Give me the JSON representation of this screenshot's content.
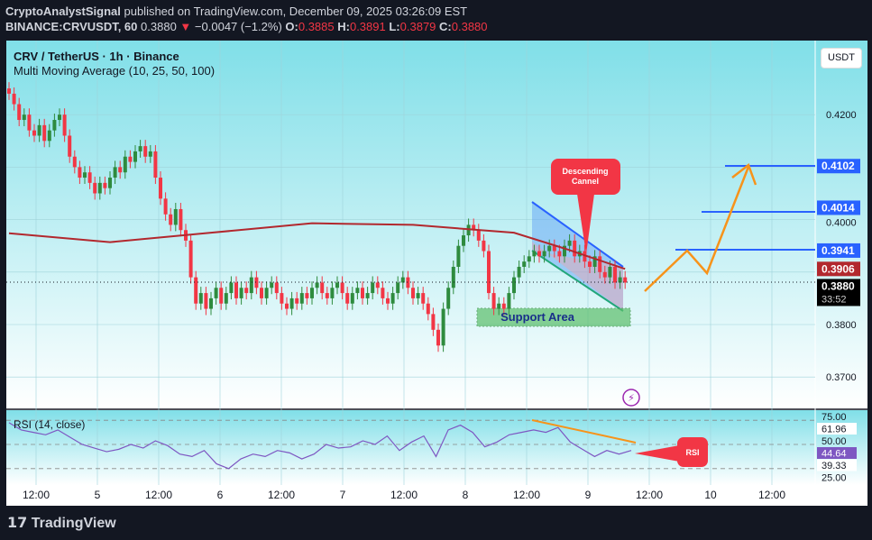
{
  "header": {
    "author": "CryptoAnalystSignal",
    "published": "published on TradingView.com, December 09, 2025 03:26:09 EST",
    "symbol": "BINANCE:CRVUSDT, 60",
    "last": "0.3880",
    "change": "−0.0047 (−1.2%)",
    "o_label": "O:",
    "o": "0.3885",
    "h_label": "H:",
    "h": "0.3891",
    "l_label": "L:",
    "l": "0.3879",
    "c_label": "C:",
    "c": "0.3880"
  },
  "legend": {
    "title": "CRV / TetherUS · 1h · Binance",
    "indicator": "Multi Moving Average (10, 25, 50, 100)",
    "rsi": "RSI (14, close)"
  },
  "currency": "USDT",
  "footer": {
    "brand": "TradingView"
  },
  "annotations": {
    "channel_label": "Descending Cannel",
    "support": "Support Area",
    "rsi_label": "RSI"
  },
  "price_tags": {
    "t1": "0.4102",
    "t2": "0.4014",
    "t3": "0.3941",
    "ma": "0.3906",
    "last": "0.3880",
    "countdown": "33:52"
  },
  "colors": {
    "up": "#2e8b3e",
    "down": "#f23645",
    "ma": "#b2282e",
    "level": "#2962ff",
    "orange": "#f7931a",
    "rsi": "#7e57c2",
    "callout": "#f23645"
  },
  "chart_data": {
    "type": "candlestick",
    "interval": "1h",
    "ylim": [
      0.365,
      0.4325
    ],
    "y_ticks": [
      "0.4200",
      "0.4000",
      "0.3800",
      "0.3700"
    ],
    "x_ticks": [
      "12:00",
      "5",
      "12:00",
      "6",
      "12:00",
      "7",
      "12:00",
      "8",
      "12:00",
      "9",
      "12:00",
      "10",
      "12:00"
    ],
    "closes": [
      0.424,
      0.422,
      0.419,
      0.42,
      0.417,
      0.416,
      0.418,
      0.415,
      0.417,
      0.419,
      0.42,
      0.416,
      0.412,
      0.41,
      0.408,
      0.409,
      0.407,
      0.405,
      0.407,
      0.406,
      0.408,
      0.41,
      0.409,
      0.412,
      0.411,
      0.413,
      0.414,
      0.412,
      0.413,
      0.408,
      0.404,
      0.401,
      0.399,
      0.402,
      0.398,
      0.396,
      0.389,
      0.384,
      0.386,
      0.383,
      0.385,
      0.387,
      0.384,
      0.386,
      0.388,
      0.385,
      0.387,
      0.386,
      0.389,
      0.387,
      0.385,
      0.387,
      0.388,
      0.386,
      0.384,
      0.383,
      0.385,
      0.384,
      0.386,
      0.385,
      0.387,
      0.388,
      0.386,
      0.385,
      0.387,
      0.388,
      0.386,
      0.384,
      0.386,
      0.387,
      0.385,
      0.386,
      0.388,
      0.387,
      0.385,
      0.384,
      0.386,
      0.388,
      0.389,
      0.387,
      0.385,
      0.386,
      0.384,
      0.382,
      0.379,
      0.376,
      0.383,
      0.387,
      0.391,
      0.395,
      0.397,
      0.399,
      0.398,
      0.396,
      0.394,
      0.386,
      0.383,
      0.384,
      0.383,
      0.386,
      0.389,
      0.391,
      0.392,
      0.393,
      0.394,
      0.393,
      0.394,
      0.395,
      0.394,
      0.393,
      0.395,
      0.396,
      0.393,
      0.394,
      0.392,
      0.391,
      0.393,
      0.39,
      0.389,
      0.391,
      0.388,
      0.389,
      0.388
    ],
    "moving_average": {
      "hours": [
        0,
        20,
        40,
        60,
        80,
        100,
        110,
        122
      ],
      "values": [
        0.3974,
        0.3957,
        0.3975,
        0.3993,
        0.399,
        0.3975,
        0.3945,
        0.3906
      ]
    },
    "levels": [
      0.4102,
      0.4014,
      0.3941
    ],
    "rsi": {
      "ylim": [
        20,
        80
      ],
      "levels": [
        70,
        50,
        30
      ],
      "ticks": [
        "75.00",
        "61.96",
        "50.00",
        "44.64",
        "39.33",
        "25.00"
      ],
      "values": [
        68,
        62,
        60,
        58,
        62,
        56,
        50,
        47,
        44,
        46,
        50,
        47,
        53,
        49,
        42,
        40,
        45,
        34,
        30,
        38,
        42,
        40,
        45,
        43,
        38,
        42,
        50,
        47,
        48,
        53,
        50,
        57,
        45,
        52,
        57,
        40,
        62,
        66,
        60,
        48,
        52,
        58,
        60,
        62,
        60,
        64,
        52,
        46,
        40,
        45,
        42,
        45
      ]
    }
  }
}
